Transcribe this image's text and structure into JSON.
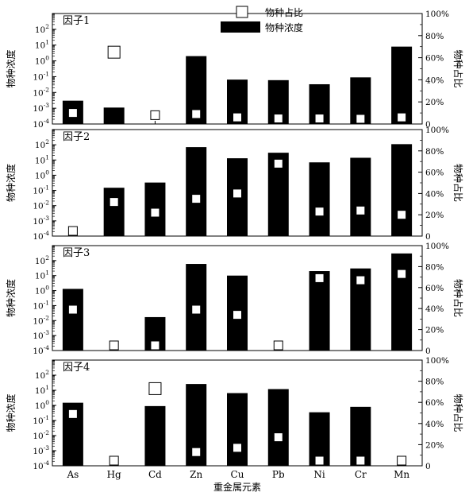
{
  "chart_data": {
    "type": "bar",
    "xlabel": "重金属元素",
    "categories": [
      "As",
      "Hg",
      "Cd",
      "Zn",
      "Cu",
      "Pb",
      "Ni",
      "Cr",
      "Mn"
    ],
    "legend": {
      "position": "top-center",
      "entries": [
        "物种占比",
        "物种浓度"
      ]
    },
    "left_axis": {
      "label": "物种浓度",
      "scale": "log",
      "range": [
        0.0001,
        1000
      ],
      "ticks": [
        {
          "base": "10",
          "exp": "-4"
        },
        {
          "base": "10",
          "exp": "-3"
        },
        {
          "base": "10",
          "exp": "-2"
        },
        {
          "base": "10",
          "exp": "-1"
        },
        {
          "base": "10",
          "exp": "0"
        },
        {
          "base": "10",
          "exp": "1"
        },
        {
          "base": "10",
          "exp": "2"
        }
      ]
    },
    "right_axis": {
      "label": "物种占比",
      "range": [
        0,
        100
      ],
      "ticks": [
        "0",
        "20%",
        "40%",
        "60%",
        "80%",
        "100%"
      ]
    },
    "panels": [
      {
        "title": "因子1",
        "concentration": [
          0.003,
          0.0011,
          0.0001,
          2.0,
          0.065,
          0.06,
          0.033,
          0.09,
          8.0
        ],
        "proportion": [
          10,
          65,
          8,
          9,
          6,
          5,
          5,
          4,
          6
        ]
      },
      {
        "title": "因子2",
        "concentration": [
          0.0001,
          0.15,
          0.33,
          70,
          13,
          30,
          7,
          14,
          110
        ],
        "proportion": [
          1,
          32,
          22,
          35,
          40,
          68,
          23,
          24,
          20
        ]
      },
      {
        "title": "因子3",
        "concentration": [
          1.3,
          0.0001,
          0.017,
          60,
          10,
          0.0001,
          20,
          30,
          300
        ],
        "proportion": [
          39,
          2,
          2,
          39,
          34,
          2,
          69,
          67,
          73
        ]
      },
      {
        "title": "因子4",
        "concentration": [
          1.5,
          0.0001,
          0.9,
          26,
          6.5,
          12,
          0.35,
          0.8,
          0.0001
        ],
        "proportion": [
          49,
          2,
          73,
          13,
          17,
          27,
          2,
          2,
          2
        ]
      }
    ]
  }
}
